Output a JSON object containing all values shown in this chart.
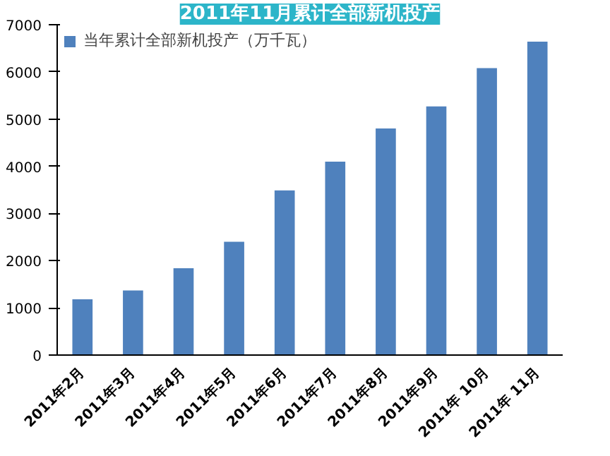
{
  "chart_data": {
    "type": "bar",
    "title": "2011年11月累计全部新机投产",
    "categories": [
      "2011年2月",
      "2011年3月",
      "2011年4月",
      "2011年5月",
      "2011年6月",
      "2011年7月",
      "2011年8月",
      "2011年9月",
      "2011年 10月",
      "2011年 11月"
    ],
    "series": [
      {
        "name": "当年累计全部新机投产（万千瓦）",
        "color": "#4f81bd",
        "values": [
          1180,
          1370,
          1840,
          2400,
          3490,
          4100,
          4800,
          5270,
          6080,
          6640
        ]
      }
    ],
    "ylim": [
      0,
      7000
    ],
    "yticks": [
      0,
      1000,
      2000,
      3000,
      4000,
      5000,
      6000,
      7000
    ],
    "grid": false,
    "legend": "top"
  }
}
